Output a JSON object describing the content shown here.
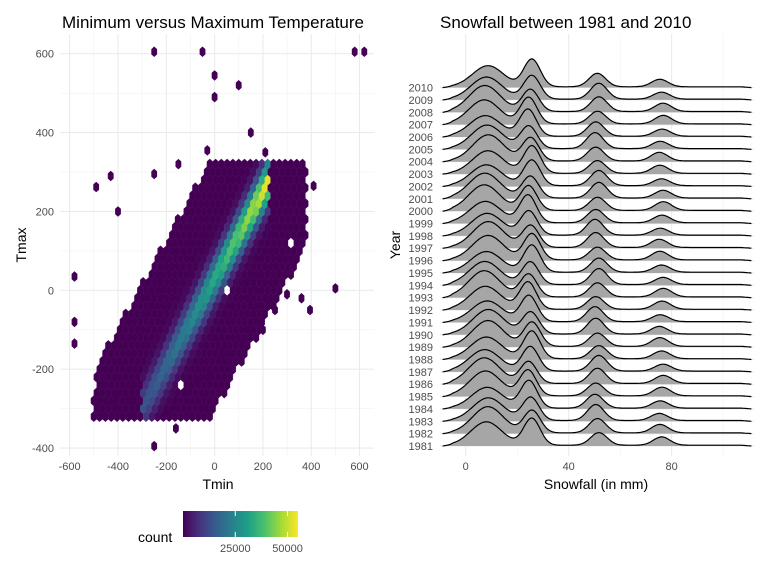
{
  "chart_data": [
    {
      "type": "hexbin",
      "title": "Minimum versus Maximum Temperature",
      "xlabel": "Tmin",
      "ylabel": "Tmax",
      "xlim": [
        -640,
        660
      ],
      "ylim": [
        -420,
        650
      ],
      "xticks": [
        -600,
        -400,
        -200,
        0,
        200,
        400,
        600
      ],
      "yticks": [
        -400,
        -200,
        0,
        200,
        400,
        600
      ],
      "grid": true,
      "legend": {
        "title": "count",
        "position": "bottom",
        "ticks": [
          25000,
          50000
        ],
        "range": [
          0,
          55000
        ],
        "colors": [
          "#440154",
          "#46327e",
          "#365c8d",
          "#277f8e",
          "#1fa187",
          "#4ac16d",
          "#a0da39",
          "#fde725"
        ]
      },
      "density_ridge": {
        "slope": 1.1,
        "intercept": 30,
        "start": -300,
        "end": 230
      },
      "outliers": [
        [
          -250,
          605
        ],
        [
          -50,
          605
        ],
        [
          0,
          545
        ],
        [
          100,
          520
        ],
        [
          580,
          605
        ],
        [
          620,
          605
        ],
        [
          0,
          490
        ],
        [
          -490,
          262
        ],
        [
          -430,
          290
        ],
        [
          -150,
          320
        ],
        [
          -400,
          200
        ],
        [
          -250,
          295
        ],
        [
          -580,
          35
        ],
        [
          -580,
          -80
        ],
        [
          -580,
          -135
        ],
        [
          500,
          5
        ],
        [
          410,
          265
        ],
        [
          -30,
          355
        ],
        [
          150,
          400
        ],
        [
          210,
          350
        ],
        [
          -410,
          -280
        ],
        [
          -340,
          -280
        ],
        [
          -200,
          -310
        ],
        [
          -160,
          -350
        ],
        [
          -250,
          -395
        ],
        [
          -120,
          -260
        ],
        [
          -70,
          -230
        ],
        [
          -20,
          -210
        ],
        [
          30,
          -160
        ],
        [
          120,
          -130
        ],
        [
          200,
          -100
        ],
        [
          250,
          -50
        ],
        [
          300,
          -10
        ],
        [
          360,
          -20
        ],
        [
          395,
          -50
        ]
      ]
    },
    {
      "type": "ridgeline",
      "title": "Snowfall between 1981 and 2010",
      "xlabel": "Snowfall (in mm)",
      "ylabel": "Year",
      "xlim": [
        -10,
        112
      ],
      "xticks": [
        0,
        40,
        80
      ],
      "grid": true,
      "fill": "#a6a6a6",
      "categories": [
        "1981",
        "1982",
        "1983",
        "1984",
        "1985",
        "1986",
        "1987",
        "1988",
        "1989",
        "1990",
        "1991",
        "1992",
        "1993",
        "1994",
        "1995",
        "1996",
        "1997",
        "1998",
        "1999",
        "2000",
        "2001",
        "2002",
        "2003",
        "2004",
        "2005",
        "2006",
        "2007",
        "2008",
        "2009",
        "2010"
      ],
      "peaks": [
        {
          "x": 8,
          "width": 6,
          "height": 0.9
        },
        {
          "x": 25,
          "width": 3.2,
          "height": 0.95
        },
        {
          "x": 51,
          "width": 3.2,
          "height": 0.55
        },
        {
          "x": 76,
          "width": 3.2,
          "height": 0.3
        }
      ]
    }
  ]
}
